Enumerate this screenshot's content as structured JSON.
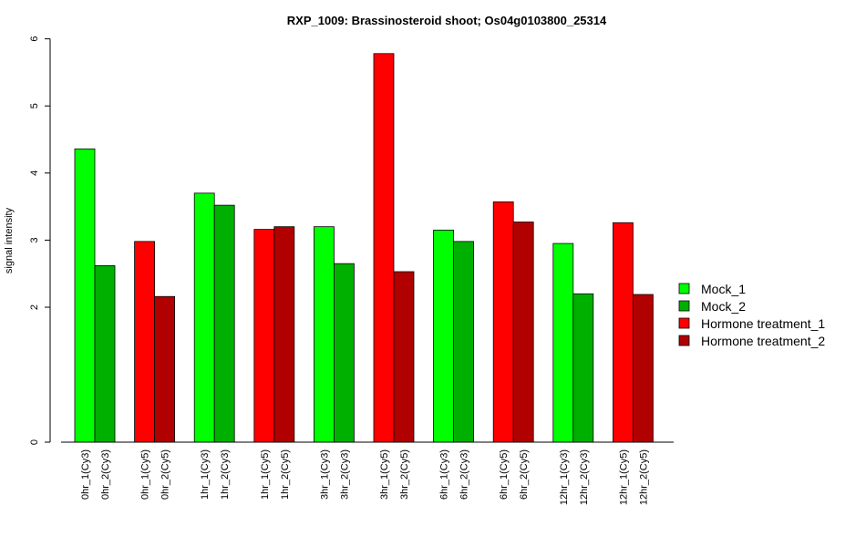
{
  "chart_data": {
    "type": "bar",
    "title": "RXP_1009: Brassinosteroid shoot; Os04g0103800_25314",
    "ylabel": "signal intensity",
    "xlabel": "",
    "ylim": [
      0,
      6
    ],
    "yticks": [
      0,
      2,
      3,
      4,
      5,
      6
    ],
    "grid": false,
    "legend_position": "right",
    "series": [
      {
        "name": "Mock_1",
        "color": "#00ff00"
      },
      {
        "name": "Mock_2",
        "color": "#00b000"
      },
      {
        "name": "Hormone treatment_1",
        "color": "#ff0000"
      },
      {
        "name": "Hormone treatment_2",
        "color": "#b00000"
      }
    ],
    "groups": [
      {
        "bars": [
          {
            "label": "0hr_1(Cy3)",
            "value": 4.36,
            "series": 0
          },
          {
            "label": "0hr_2(Cy3)",
            "value": 2.62,
            "series": 1
          }
        ]
      },
      {
        "bars": [
          {
            "label": "0hr_1(Cy5)",
            "value": 2.98,
            "series": 2
          },
          {
            "label": "0hr_2(Cy5)",
            "value": 2.16,
            "series": 3
          }
        ]
      },
      {
        "bars": [
          {
            "label": "1hr_1(Cy3)",
            "value": 3.7,
            "series": 0
          },
          {
            "label": "1hr_2(Cy3)",
            "value": 3.52,
            "series": 1
          }
        ]
      },
      {
        "bars": [
          {
            "label": "1hr_1(Cy5)",
            "value": 3.16,
            "series": 2
          },
          {
            "label": "1hr_2(Cy5)",
            "value": 3.2,
            "series": 3
          }
        ]
      },
      {
        "bars": [
          {
            "label": "3hr_1(Cy3)",
            "value": 3.2,
            "series": 0
          },
          {
            "label": "3hr_2(Cy3)",
            "value": 2.65,
            "series": 1
          }
        ]
      },
      {
        "bars": [
          {
            "label": "3hr_1(Cy5)",
            "value": 5.78,
            "series": 2
          },
          {
            "label": "3hr_2(Cy5)",
            "value": 2.53,
            "series": 3
          }
        ]
      },
      {
        "bars": [
          {
            "label": "6hr_1(Cy3)",
            "value": 3.15,
            "series": 0
          },
          {
            "label": "6hr_2(Cy3)",
            "value": 2.98,
            "series": 1
          }
        ]
      },
      {
        "bars": [
          {
            "label": "6hr_1(Cy5)",
            "value": 3.57,
            "series": 2
          },
          {
            "label": "6hr_2(Cy5)",
            "value": 3.27,
            "series": 3
          }
        ]
      },
      {
        "bars": [
          {
            "label": "12hr_1(Cy3)",
            "value": 2.95,
            "series": 0
          },
          {
            "label": "12hr_2(Cy3)",
            "value": 2.2,
            "series": 1
          }
        ]
      },
      {
        "bars": [
          {
            "label": "12hr_1(Cy5)",
            "value": 3.26,
            "series": 2
          },
          {
            "label": "12hr_2(Cy5)",
            "value": 2.19,
            "series": 3
          }
        ]
      }
    ]
  }
}
